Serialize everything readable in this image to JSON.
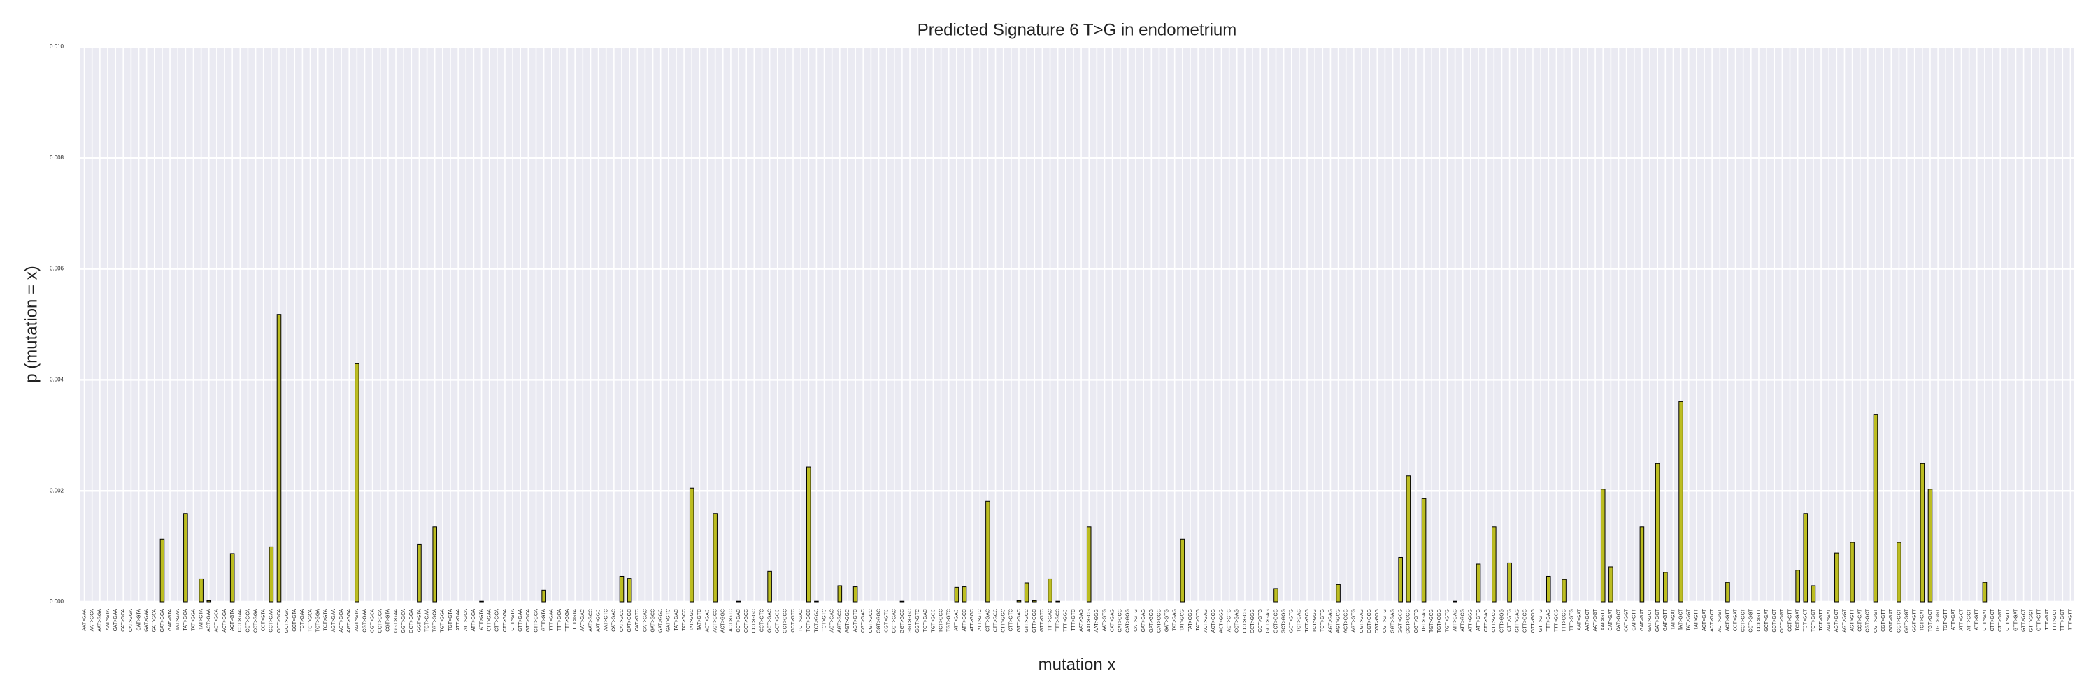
{
  "chart_data": {
    "type": "bar",
    "title": "Predicted Signature 6 T>G in endometrium",
    "xlabel": "mutation x",
    "ylabel": "p (mutation = x)",
    "color": "#bcbd22",
    "edgecolor": "#000000",
    "grid": true,
    "ylim": [
      0,
      0.01
    ],
    "yticks": [
      {
        "value": 0,
        "label": "0.000"
      },
      {
        "value": 0.002,
        "label": "0.002"
      },
      {
        "value": 0.004,
        "label": "0.004"
      },
      {
        "value": 0.006,
        "label": "0.006"
      },
      {
        "value": 0.008,
        "label": "0.008"
      },
      {
        "value": 0.01,
        "label": "0.010"
      }
    ],
    "categories": [
      "AAT>GAA",
      "AAT>GCA",
      "AAT>GGA",
      "AAT>GTA",
      "CAT>GAA",
      "CAT>GCA",
      "CAT>GGA",
      "CAT>GTA",
      "GAT>GAA",
      "GAT>GCA",
      "GAT>GGA",
      "GAT>GTA",
      "TAT>GAA",
      "TAT>GCA",
      "TAT>GGA",
      "TAT>GTA",
      "ACT>GAA",
      "ACT>GCA",
      "ACT>GGA",
      "ACT>GTA",
      "CCT>GAA",
      "CCT>GCA",
      "CCT>GGA",
      "CCT>GTA",
      "GCT>GAA",
      "GCT>GCA",
      "GCT>GGA",
      "GCT>GTA",
      "TCT>GAA",
      "TCT>GCA",
      "TCT>GGA",
      "TCT>GTA",
      "AGT>GAA",
      "AGT>GCA",
      "AGT>GGA",
      "AGT>GTA",
      "CGT>GAA",
      "CGT>GCA",
      "CGT>GGA",
      "CGT>GTA",
      "GGT>GAA",
      "GGT>GCA",
      "GGT>GGA",
      "GGT>GTA",
      "TGT>GAA",
      "TGT>GCA",
      "TGT>GGA",
      "TGT>GTA",
      "ATT>GAA",
      "ATT>GCA",
      "ATT>GGA",
      "ATT>GTA",
      "CTT>GAA",
      "CTT>GCA",
      "CTT>GGA",
      "CTT>GTA",
      "GTT>GAA",
      "GTT>GCA",
      "GTT>GGA",
      "GTT>GTA",
      "TTT>GAA",
      "TTT>GCA",
      "TTT>GGA",
      "TTT>GTA",
      "AAT>GAC",
      "AAT>GCC",
      "AAT>GGC",
      "AAT>GTC",
      "CAT>GAC",
      "CAT>GCC",
      "CAT>GGC",
      "CAT>GTC",
      "GAT>GAC",
      "GAT>GCC",
      "GAT>GGC",
      "GAT>GTC",
      "TAT>GAC",
      "TAT>GCC",
      "TAT>GGC",
      "TAT>GTC",
      "ACT>GAC",
      "ACT>GCC",
      "ACT>GGC",
      "ACT>GTC",
      "CCT>GAC",
      "CCT>GCC",
      "CCT>GGC",
      "CCT>GTC",
      "GCT>GAC",
      "GCT>GCC",
      "GCT>GGC",
      "GCT>GTC",
      "TCT>GAC",
      "TCT>GCC",
      "TCT>GGC",
      "TCT>GTC",
      "AGT>GAC",
      "AGT>GCC",
      "AGT>GGC",
      "AGT>GTC",
      "CGT>GAC",
      "CGT>GCC",
      "CGT>GGC",
      "CGT>GTC",
      "GGT>GAC",
      "GGT>GCC",
      "GGT>GGC",
      "GGT>GTC",
      "TGT>GAC",
      "TGT>GCC",
      "TGT>GGC",
      "TGT>GTC",
      "ATT>GAC",
      "ATT>GCC",
      "ATT>GGC",
      "ATT>GTC",
      "CTT>GAC",
      "CTT>GCC",
      "CTT>GGC",
      "CTT>GTC",
      "GTT>GAC",
      "GTT>GCC",
      "GTT>GGC",
      "GTT>GTC",
      "TTT>GAC",
      "TTT>GCC",
      "TTT>GGC",
      "TTT>GTC",
      "AAT>GAG",
      "AAT>GCG",
      "AAT>GGG",
      "AAT>GTG",
      "CAT>GAG",
      "CAT>GCG",
      "CAT>GGG",
      "CAT>GTG",
      "GAT>GAG",
      "GAT>GCG",
      "GAT>GGG",
      "GAT>GTG",
      "TAT>GAG",
      "TAT>GCG",
      "TAT>GGG",
      "TAT>GTG",
      "ACT>GAG",
      "ACT>GCG",
      "ACT>GGG",
      "ACT>GTG",
      "CCT>GAG",
      "CCT>GCG",
      "CCT>GGG",
      "CCT>GTG",
      "GCT>GAG",
      "GCT>GCG",
      "GCT>GGG",
      "GCT>GTG",
      "TCT>GAG",
      "TCT>GCG",
      "TCT>GGG",
      "TCT>GTG",
      "AGT>GAG",
      "AGT>GCG",
      "AGT>GGG",
      "AGT>GTG",
      "CGT>GAG",
      "CGT>GCG",
      "CGT>GGG",
      "CGT>GTG",
      "GGT>GAG",
      "GGT>GCG",
      "GGT>GGG",
      "GGT>GTG",
      "TGT>GAG",
      "TGT>GCG",
      "TGT>GGG",
      "TGT>GTG",
      "ATT>GAG",
      "ATT>GCG",
      "ATT>GGG",
      "ATT>GTG",
      "CTT>GAG",
      "CTT>GCG",
      "CTT>GGG",
      "CTT>GTG",
      "GTT>GAG",
      "GTT>GCG",
      "GTT>GGG",
      "GTT>GTG",
      "TTT>GAG",
      "TTT>GCG",
      "TTT>GGG",
      "TTT>GTG",
      "AAT>GAT",
      "AAT>GCT",
      "AAT>GGT",
      "AAT>GTT",
      "CAT>GAT",
      "CAT>GCT",
      "CAT>GGT",
      "CAT>GTT",
      "GAT>GAT",
      "GAT>GCT",
      "GAT>GGT",
      "GAT>GTT",
      "TAT>GAT",
      "TAT>GCT",
      "TAT>GGT",
      "TAT>GTT",
      "ACT>GAT",
      "ACT>GCT",
      "ACT>GGT",
      "ACT>GTT",
      "CCT>GAT",
      "CCT>GCT",
      "CCT>GGT",
      "CCT>GTT",
      "GCT>GAT",
      "GCT>GCT",
      "GCT>GGT",
      "GCT>GTT",
      "TCT>GAT",
      "TCT>GCT",
      "TCT>GGT",
      "TCT>GTT",
      "AGT>GAT",
      "AGT>GCT",
      "AGT>GGT",
      "AGT>GTT",
      "CGT>GAT",
      "CGT>GCT",
      "CGT>GGT",
      "CGT>GTT",
      "GGT>GAT",
      "GGT>GCT",
      "GGT>GGT",
      "GGT>GTT",
      "TGT>GAT",
      "TGT>GCT",
      "TGT>GGT",
      "TGT>GTT",
      "ATT>GAT",
      "ATT>GCT",
      "ATT>GGT",
      "ATT>GTT",
      "CTT>GAT",
      "CTT>GCT",
      "CTT>GGT",
      "CTT>GTT",
      "GTT>GAT",
      "GTT>GCT",
      "GTT>GGT",
      "GTT>GTT",
      "TTT>GAT",
      "TTT>GCT",
      "TTT>GGT",
      "TTT>GTT"
    ],
    "values": [
      0,
      0,
      0,
      0,
      0,
      0,
      0,
      0,
      0,
      0,
      0.00113,
      0,
      0,
      0.00159,
      0,
      0.00041,
      2e-05,
      0,
      0,
      0.00087,
      0,
      0,
      0,
      0,
      0.00099,
      0.00518,
      0,
      0,
      0,
      0,
      0,
      0,
      0,
      0,
      0,
      0.00429,
      0,
      0,
      0,
      0,
      0,
      0,
      0,
      0.00104,
      0,
      0.00135,
      0,
      0,
      0,
      0,
      0,
      1e-05,
      0,
      0,
      0,
      0,
      0,
      0,
      0,
      0.00021,
      0,
      0,
      0,
      0,
      0,
      0,
      0,
      0,
      0,
      0.00046,
      0.00042,
      0,
      0,
      0,
      0,
      0,
      0,
      0,
      0.00205,
      0,
      0,
      0.00159,
      0,
      0,
      1e-05,
      0,
      0,
      0,
      0.00055,
      0,
      0,
      0,
      0,
      0.00243,
      1e-05,
      0,
      0,
      0.00029,
      0,
      0.00027,
      0,
      0,
      0,
      0,
      0,
      1e-05,
      0,
      0,
      0,
      0,
      0,
      0,
      0.00026,
      0.00027,
      0,
      0,
      0.00181,
      0,
      0,
      0,
      2e-05,
      0.00034,
      2e-05,
      0,
      0.00041,
      1e-05,
      0,
      0,
      0,
      0.00135,
      0,
      0,
      0,
      0,
      0,
      0,
      0,
      0,
      0,
      0,
      0,
      0.00113,
      0,
      0,
      0,
      0,
      0,
      0,
      0,
      0,
      0,
      0,
      0,
      0.00024,
      0,
      0,
      0,
      0,
      0,
      0,
      0,
      0.00031,
      0,
      0,
      0,
      0,
      0,
      0,
      0,
      0.0008,
      0.00227,
      0,
      0.00186,
      0,
      0,
      0,
      1e-05,
      0,
      0,
      0.00068,
      0,
      0.00135,
      0,
      0.0007,
      0,
      0,
      0,
      0,
      0.00046,
      0,
      0.0004,
      0,
      0,
      0,
      0,
      0.00203,
      0.00063,
      0,
      0,
      0,
      0.00135,
      0,
      0.00249,
      0.00053,
      0,
      0.00361,
      0,
      0,
      0,
      0,
      0,
      0.00035,
      0,
      0,
      0,
      0,
      0,
      0,
      0,
      0,
      0.00057,
      0.00159,
      0.00029,
      0,
      0,
      0.00088,
      0,
      0.00107,
      0,
      0,
      0.00338,
      0,
      0,
      0.00107,
      0,
      0,
      0.00249,
      0.00203,
      0,
      0,
      0,
      0,
      0,
      0,
      0.00035,
      0,
      0,
      0,
      0,
      0,
      0,
      0,
      0,
      0,
      0,
      0
    ]
  }
}
